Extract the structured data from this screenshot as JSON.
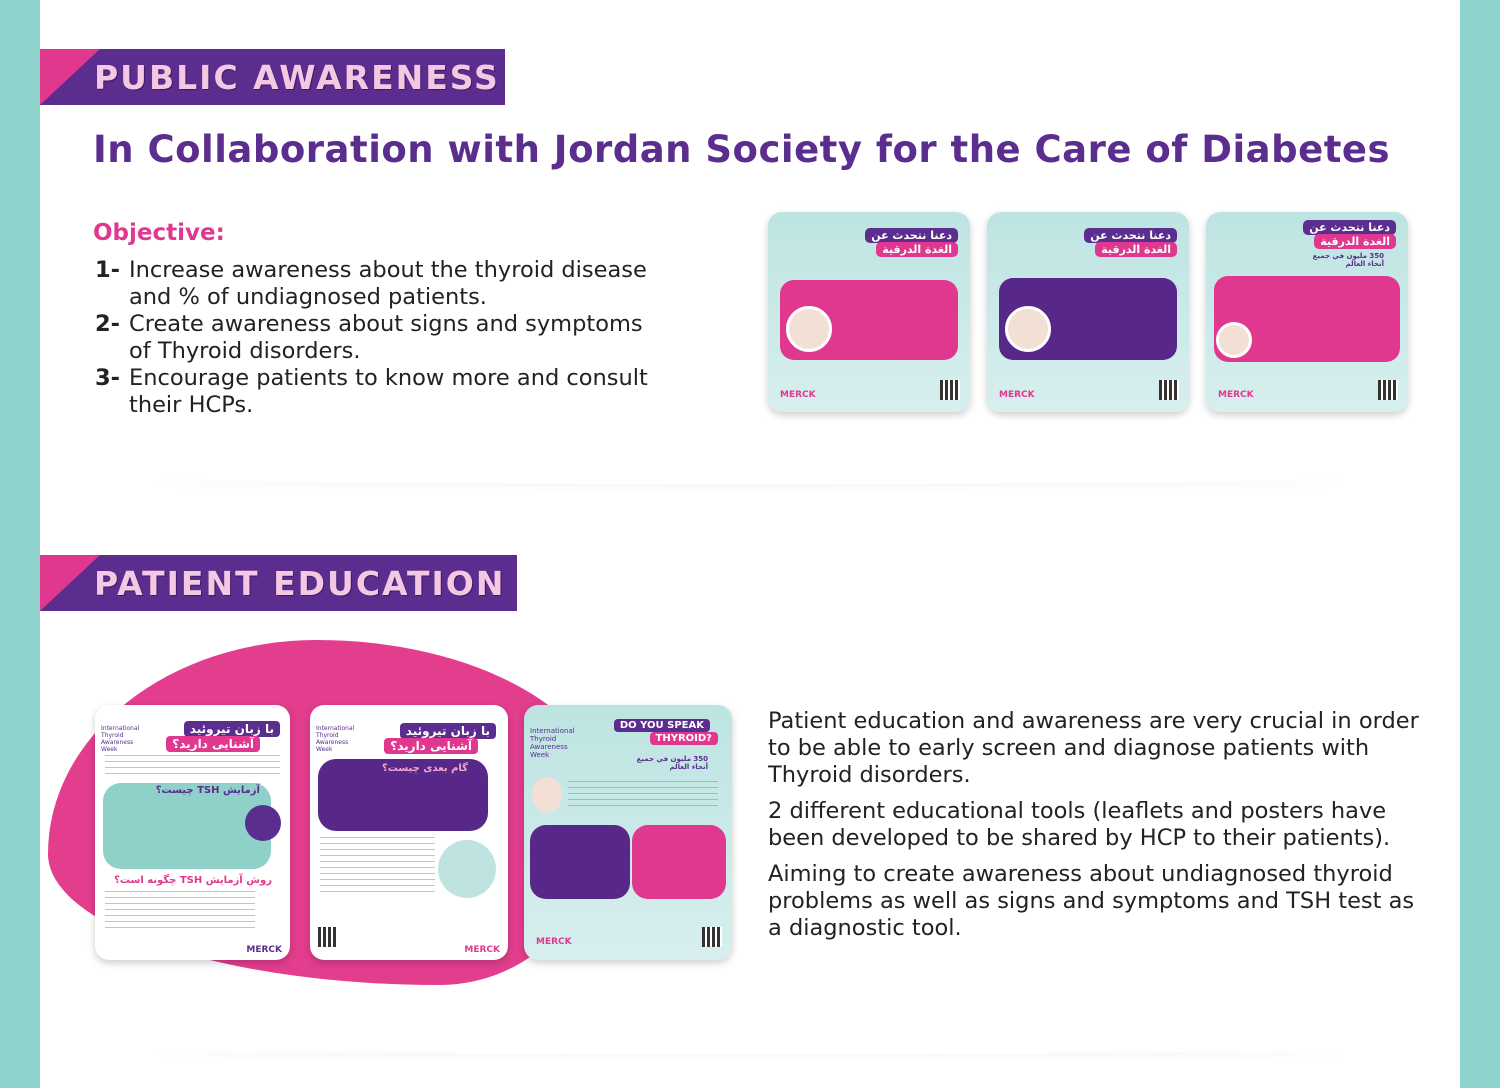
{
  "public_awareness": {
    "banner": "PUBLIC AWARENESS",
    "title": "In Collaboration with Jordan Society for the Care of Diabetes",
    "objective_label": "Objective:",
    "objectives": [
      {
        "num": "1-",
        "text": "Increase awareness about the thyroid disease and % of undiagnosed patients."
      },
      {
        "num": "2-",
        "text": "Create awareness about signs and symptoms of Thyroid disorders."
      },
      {
        "num": "3-",
        "text": "Encourage patients to know more and consult their HCPs."
      }
    ],
    "posters": [
      {
        "heading_top": "دعنا نتحدث عن",
        "heading_bottom": "الغدة الدرقية",
        "logo": "MERCK"
      },
      {
        "heading_top": "دعنا نتحدث عن",
        "heading_bottom": "الغدة الدرقية",
        "logo": "MERCK"
      },
      {
        "heading_top": "دعنا نتحدث عن",
        "heading_bottom": "الغدة الدرقية",
        "stat": "350 مليون في جميع أنحاء العالم",
        "logo": "MERCK"
      }
    ]
  },
  "patient_education": {
    "banner": "PATIENT EDUCATION",
    "leaflets": [
      {
        "brand": "International Thyroid Awareness Week",
        "heading_top": "با زبان تیروئید",
        "heading_bottom": "آشنایی دارید؟",
        "section": "آزمایش TSH چیست؟",
        "section2": "روش آزمایش TSH چگونه است؟",
        "logo": "MERCK"
      },
      {
        "brand": "International Thyroid Awareness Week",
        "heading_top": "با زبان تیروئید",
        "heading_bottom": "آشنایی دارید؟",
        "section": "گام بعدی چیست؟",
        "logo": "MERCK"
      },
      {
        "brand": "International Thyroid Awareness Week",
        "heading_top": "DO YOU SPEAK",
        "heading_bottom": "THYROID?",
        "stat": "350 مليون في جميع أنحاء العالم",
        "logo": "MERCK"
      }
    ],
    "paragraphs": [
      "Patient education and awareness are very crucial in order to be able to early screen and diagnose patients with Thyroid disorders.",
      "2 different educational tools (leaflets and posters have been developed to be shared by HCP to their patients).",
      "Aiming to create awareness about undiagnosed thyroid problems as well as signs and symptoms and TSH test as a diagnostic tool."
    ]
  },
  "colors": {
    "purple": "#5b2d8e",
    "pink": "#e0388f",
    "teal": "#8fd3cc"
  }
}
